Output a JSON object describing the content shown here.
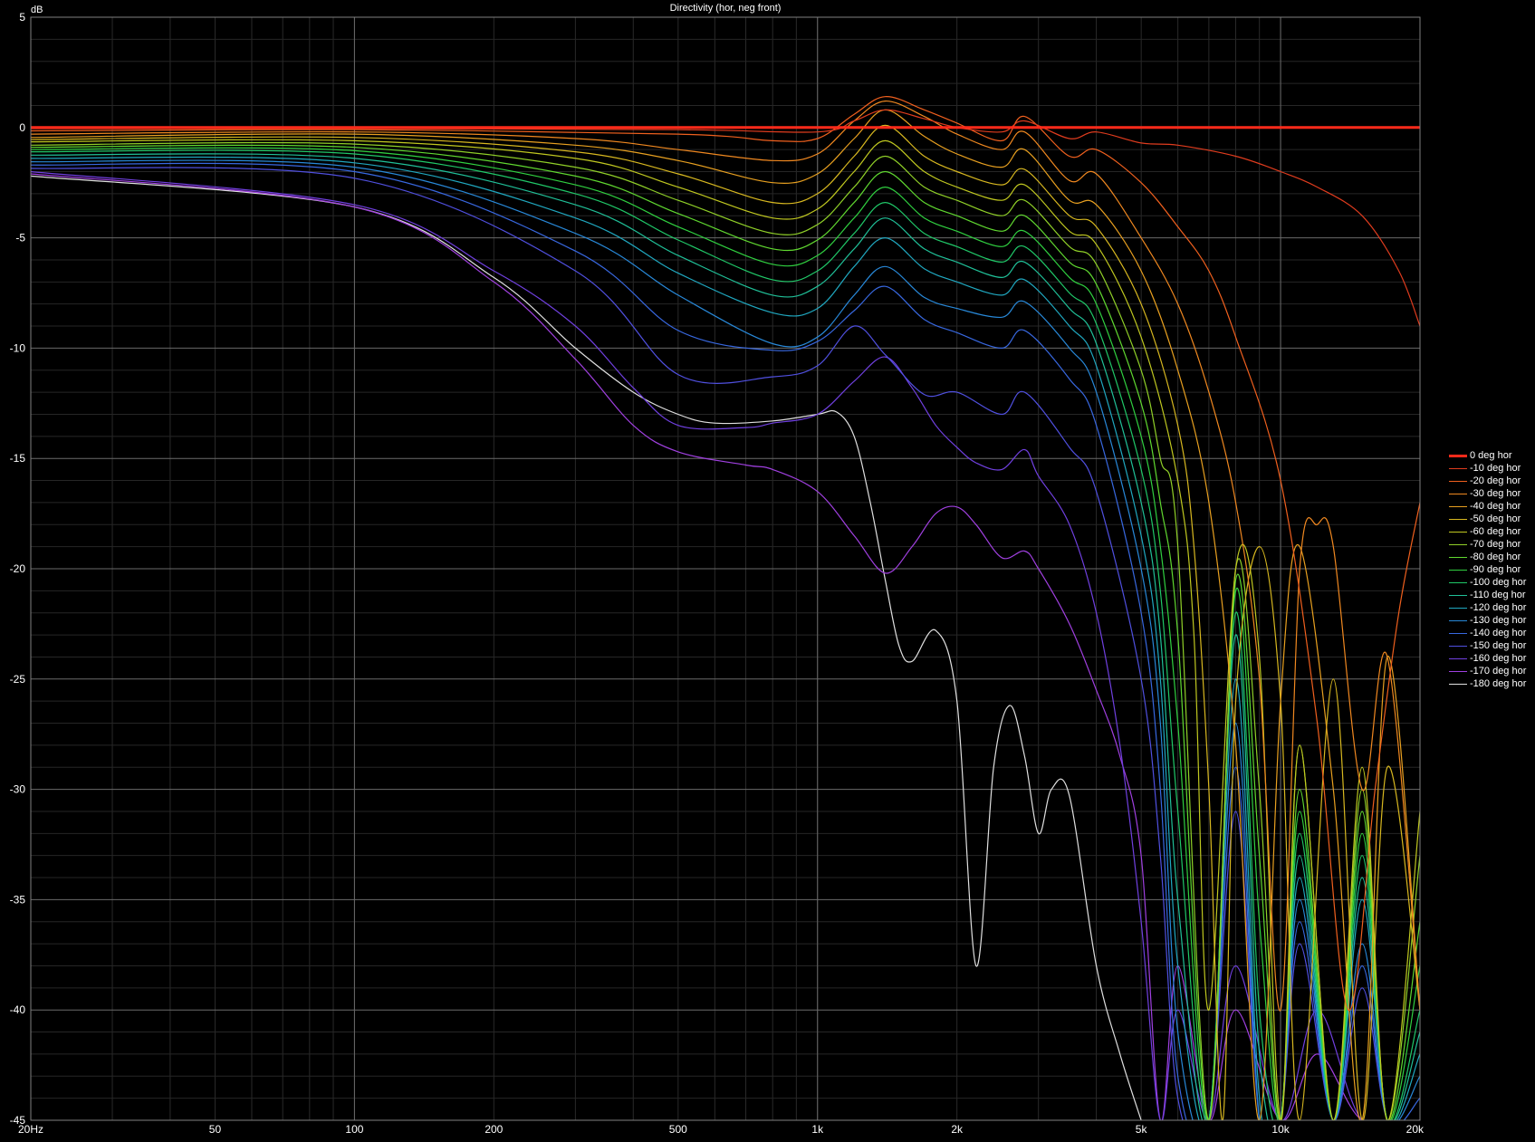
{
  "chart_data": {
    "type": "line",
    "title": "Directivity (hor, neg front)",
    "ylabel": "dB",
    "xlabel": "",
    "x_scale": "log",
    "xlim": [
      20,
      20000
    ],
    "ylim": [
      -45,
      5
    ],
    "grid": true,
    "legend_position": "right",
    "x_ticks": [
      {
        "value": 20,
        "label": "20Hz"
      },
      {
        "value": 50,
        "label": "50"
      },
      {
        "value": 100,
        "label": "100"
      },
      {
        "value": 200,
        "label": "200"
      },
      {
        "value": 500,
        "label": "500"
      },
      {
        "value": 1000,
        "label": "1k"
      },
      {
        "value": 2000,
        "label": "2k"
      },
      {
        "value": 5000,
        "label": "5k"
      },
      {
        "value": 10000,
        "label": "10k"
      },
      {
        "value": 20000,
        "label": "20k"
      }
    ],
    "y_ticks": [
      {
        "value": 5,
        "label": "5"
      },
      {
        "value": 0,
        "label": "0"
      },
      {
        "value": -5,
        "label": "-5"
      },
      {
        "value": -10,
        "label": "-10"
      },
      {
        "value": -15,
        "label": "-15"
      },
      {
        "value": -20,
        "label": "-20"
      },
      {
        "value": -25,
        "label": "-25"
      },
      {
        "value": -30,
        "label": "-30"
      },
      {
        "value": -35,
        "label": "-35"
      },
      {
        "value": -40,
        "label": "-40"
      },
      {
        "value": -45,
        "label": "-45"
      }
    ],
    "series": [
      {
        "name": "0 deg hor",
        "color": "#ff2a1a",
        "x": [
          20,
          100,
          1000,
          5000,
          10000,
          20000
        ],
        "y": [
          0,
          0,
          0,
          0,
          0,
          0
        ]
      },
      {
        "name": "-10 deg hor",
        "color": "#e03c1e",
        "x": [
          20,
          100,
          500,
          1000,
          1200,
          1400,
          1700,
          2000,
          2500,
          2800,
          3500,
          4000,
          5000,
          6000,
          8000,
          10000,
          12000,
          15000,
          18000,
          20000
        ],
        "y": [
          -0.05,
          -0.05,
          -0.1,
          -0.2,
          0.3,
          0.8,
          0.4,
          0,
          -0.2,
          0.3,
          -0.5,
          -0.2,
          -0.7,
          -0.8,
          -1.3,
          -2.0,
          -2.7,
          -4.0,
          -6.5,
          -9.0
        ]
      },
      {
        "name": "-20 deg hor",
        "color": "#f0601e",
        "x": [
          20,
          100,
          500,
          800,
          1000,
          1200,
          1400,
          1700,
          2000,
          2500,
          2800,
          3500,
          4000,
          5000,
          6000,
          7000,
          8000,
          10000,
          12000,
          14000,
          16000,
          18000,
          20000
        ],
        "y": [
          -0.15,
          -0.1,
          -0.3,
          -0.6,
          -0.5,
          0.6,
          1.4,
          0.8,
          0.2,
          -0.6,
          0.5,
          -1.3,
          -1.0,
          -2.5,
          -4.5,
          -6.5,
          -9.5,
          -16.0,
          -27.0,
          -40.0,
          -30.0,
          -22.0,
          -17.0
        ]
      },
      {
        "name": "-30 deg hor",
        "color": "#f08820",
        "x": [
          20,
          100,
          300,
          500,
          800,
          1000,
          1200,
          1400,
          1700,
          2000,
          2500,
          2800,
          3500,
          4000,
          5000,
          6000,
          7000,
          8000,
          9000,
          10000,
          11000,
          12000,
          13000,
          15000,
          17000,
          20000
        ],
        "y": [
          -0.3,
          -0.2,
          -0.5,
          -1.0,
          -1.5,
          -1.2,
          0.3,
          1.2,
          0.5,
          -0.3,
          -1.0,
          -0.2,
          -2.4,
          -2.1,
          -5.0,
          -8.0,
          -12.0,
          -17.0,
          -25.0,
          -40.0,
          -20.0,
          -18.0,
          -19.0,
          -30.0,
          -24.0,
          -40.0
        ]
      },
      {
        "name": "-40 deg hor",
        "color": "#e8a020",
        "x": [
          20,
          100,
          300,
          500,
          800,
          1000,
          1200,
          1400,
          1700,
          2000,
          2500,
          2800,
          3500,
          4000,
          5000,
          6000,
          7000,
          8000,
          9000,
          10000,
          11000,
          13000,
          15000,
          17000,
          20000
        ],
        "y": [
          -0.45,
          -0.3,
          -0.8,
          -1.5,
          -2.5,
          -2.1,
          -0.5,
          0.8,
          -0.4,
          -1.2,
          -1.8,
          -1.0,
          -3.3,
          -3.5,
          -6.5,
          -11.0,
          -17.0,
          -28.0,
          -45.0,
          -26.0,
          -19.0,
          -30.0,
          -45.0,
          -24.0,
          -40.0
        ]
      },
      {
        "name": "-50 deg hor",
        "color": "#d8b820",
        "x": [
          20,
          100,
          300,
          500,
          800,
          1000,
          1200,
          1400,
          1700,
          2000,
          2500,
          2800,
          3500,
          4000,
          5000,
          6000,
          6500,
          7000,
          7500,
          8000,
          9000,
          10000,
          11000,
          13000,
          15000,
          17000,
          20000
        ],
        "y": [
          -0.55,
          -0.45,
          -1.1,
          -2.1,
          -3.4,
          -3.0,
          -1.3,
          0.1,
          -1.3,
          -2.0,
          -2.6,
          -1.9,
          -4.0,
          -4.5,
          -8.0,
          -13.5,
          -19.0,
          -30.0,
          -45.0,
          -26.0,
          -19.0,
          -26.0,
          -45.0,
          -25.0,
          -45.0,
          -29.0,
          -40.0
        ]
      },
      {
        "name": "-60 deg hor",
        "color": "#c0c820",
        "x": [
          20,
          100,
          300,
          500,
          800,
          1000,
          1200,
          1400,
          1700,
          2000,
          2500,
          2800,
          3500,
          4000,
          5000,
          6000,
          6500,
          7000,
          8000,
          9000,
          10000,
          11000,
          13000,
          15000,
          17000,
          20000
        ],
        "y": [
          -0.65,
          -0.6,
          -1.4,
          -2.7,
          -4.1,
          -3.7,
          -2.0,
          -0.6,
          -2.0,
          -2.7,
          -3.3,
          -2.6,
          -4.7,
          -5.3,
          -9.5,
          -16.0,
          -23.0,
          -40.0,
          -20.0,
          -24.0,
          -45.0,
          -28.0,
          -45.0,
          -29.0,
          -45.0,
          -31.0
        ]
      },
      {
        "name": "-70 deg hor",
        "color": "#90d028",
        "x": [
          20,
          100,
          300,
          500,
          800,
          1000,
          1200,
          1400,
          1700,
          2000,
          2500,
          2800,
          3500,
          4000,
          5000,
          5500,
          6000,
          7000,
          8000,
          9000,
          10000,
          11000,
          13000,
          15000,
          17000,
          20000
        ],
        "y": [
          -0.8,
          -0.75,
          -1.8,
          -3.3,
          -4.8,
          -4.4,
          -2.7,
          -1.3,
          -2.7,
          -3.3,
          -4.0,
          -3.3,
          -5.4,
          -6.2,
          -11.0,
          -15.0,
          -19.0,
          -45.0,
          -20.0,
          -30.0,
          -45.0,
          -28.0,
          -45.0,
          -30.0,
          -45.0,
          -33.0
        ]
      },
      {
        "name": "-80 deg hor",
        "color": "#60d830",
        "x": [
          20,
          100,
          300,
          500,
          800,
          1000,
          1200,
          1400,
          1700,
          2000,
          2500,
          2800,
          3500,
          4000,
          5000,
          5500,
          6000,
          7000,
          8000,
          9000,
          10000,
          11000,
          13000,
          15000,
          17000,
          20000
        ],
        "y": [
          -0.9,
          -0.9,
          -2.2,
          -3.9,
          -5.5,
          -5.1,
          -3.4,
          -2.0,
          -3.4,
          -4.0,
          -4.7,
          -4.0,
          -6.1,
          -7.1,
          -12.5,
          -17.0,
          -23.0,
          -45.0,
          -20.5,
          -33.0,
          -45.0,
          -30.0,
          -45.0,
          -31.0,
          -45.0,
          -36.0
        ]
      },
      {
        "name": "-90 deg hor",
        "color": "#30d040",
        "x": [
          20,
          100,
          300,
          500,
          800,
          1000,
          1200,
          1400,
          1700,
          2000,
          2500,
          2800,
          3500,
          4000,
          5000,
          5500,
          6000,
          7000,
          8000,
          9000,
          10000,
          11000,
          13000,
          15000,
          17000,
          20000
        ],
        "y": [
          -1.0,
          -1.05,
          -2.6,
          -4.5,
          -6.2,
          -5.8,
          -4.1,
          -2.7,
          -4.1,
          -4.7,
          -5.4,
          -4.7,
          -6.8,
          -8.0,
          -14.0,
          -19.0,
          -27.0,
          -45.0,
          -21.0,
          -36.0,
          -45.0,
          -31.0,
          -45.0,
          -32.0,
          -45.0,
          -38.0
        ]
      },
      {
        "name": "-100 deg hor",
        "color": "#20c868",
        "x": [
          20,
          100,
          300,
          500,
          800,
          1000,
          1200,
          1400,
          1700,
          2000,
          2500,
          2800,
          3500,
          4000,
          5000,
          5500,
          6000,
          7000,
          8000,
          9000,
          10000,
          11000,
          13000,
          15000,
          17000,
          20000
        ],
        "y": [
          -1.1,
          -1.2,
          -3.0,
          -5.1,
          -6.9,
          -6.5,
          -4.8,
          -3.4,
          -4.8,
          -5.4,
          -6.1,
          -5.4,
          -7.5,
          -8.9,
          -15.5,
          -21.0,
          -31.0,
          -45.0,
          -22.0,
          -40.0,
          -45.0,
          -32.0,
          -45.0,
          -33.0,
          -45.0,
          -40.0
        ]
      },
      {
        "name": "-110 deg hor",
        "color": "#20c098",
        "x": [
          20,
          100,
          300,
          500,
          800,
          1000,
          1200,
          1400,
          1700,
          2000,
          2500,
          2800,
          3500,
          4000,
          5000,
          5500,
          6000,
          7000,
          8000,
          9000,
          10000,
          11000,
          13000,
          15000,
          17000,
          20000
        ],
        "y": [
          -1.25,
          -1.4,
          -3.5,
          -5.8,
          -7.6,
          -7.2,
          -5.5,
          -4.1,
          -5.5,
          -6.1,
          -6.8,
          -6.1,
          -8.2,
          -9.8,
          -17.0,
          -23.0,
          -35.0,
          -45.0,
          -23.0,
          -42.0,
          -45.0,
          -33.0,
          -45.0,
          -34.0,
          -45.0,
          -41.0
        ]
      },
      {
        "name": "-120 deg hor",
        "color": "#20a8c0",
        "x": [
          20,
          100,
          300,
          500,
          800,
          1000,
          1200,
          1400,
          1700,
          2000,
          2500,
          2800,
          3500,
          4000,
          5000,
          5500,
          6000,
          7000,
          8000,
          9000,
          10000,
          11000,
          13000,
          15000,
          17000,
          20000
        ],
        "y": [
          -1.4,
          -1.6,
          -4.1,
          -6.6,
          -8.4,
          -8.2,
          -6.3,
          -5.0,
          -6.4,
          -7.0,
          -7.6,
          -6.9,
          -9.0,
          -10.8,
          -18.5,
          -25.0,
          -38.0,
          -45.0,
          -25.0,
          -44.0,
          -45.0,
          -34.0,
          -45.0,
          -35.0,
          -45.0,
          -42.0
        ]
      },
      {
        "name": "-130 deg hor",
        "color": "#2888d8",
        "x": [
          20,
          100,
          300,
          500,
          800,
          1000,
          1200,
          1400,
          1700,
          2000,
          2500,
          2800,
          3500,
          4000,
          5000,
          5500,
          6000,
          7000,
          8000,
          9000,
          10000,
          11000,
          13000,
          15000,
          17000,
          20000
        ],
        "y": [
          -1.55,
          -1.8,
          -4.8,
          -7.6,
          -9.8,
          -9.5,
          -7.6,
          -6.3,
          -7.7,
          -8.2,
          -8.6,
          -7.9,
          -10.0,
          -12.0,
          -20.0,
          -27.0,
          -41.0,
          -45.0,
          -27.0,
          -45.0,
          -45.0,
          -35.0,
          -45.0,
          -37.0,
          -45.0,
          -43.0
        ]
      },
      {
        "name": "-140 deg hor",
        "color": "#3868e0",
        "x": [
          20,
          100,
          300,
          500,
          800,
          1000,
          1200,
          1400,
          1700,
          2000,
          2500,
          2800,
          3500,
          4000,
          5000,
          5500,
          6000,
          7000,
          8000,
          9000,
          10000,
          11000,
          13000,
          15000,
          17000,
          20000
        ],
        "y": [
          -1.7,
          -2.0,
          -5.6,
          -9.2,
          -10.1,
          -9.7,
          -8.3,
          -7.2,
          -8.7,
          -9.3,
          -10.0,
          -9.2,
          -11.4,
          -13.5,
          -22.0,
          -30.0,
          -43.0,
          -45.0,
          -29.0,
          -45.0,
          -45.0,
          -36.0,
          -45.0,
          -38.0,
          -45.0,
          -44.0
        ]
      },
      {
        "name": "-150 deg hor",
        "color": "#5050e0",
        "x": [
          20,
          100,
          300,
          500,
          800,
          1000,
          1200,
          1400,
          1700,
          2000,
          2500,
          2800,
          3500,
          4000,
          5000,
          5500,
          6000,
          7000,
          8000,
          9000,
          10000,
          11000,
          13000,
          15000,
          17000,
          20000
        ],
        "y": [
          -1.85,
          -2.3,
          -6.5,
          -11.2,
          -11.3,
          -10.8,
          -9.0,
          -10.3,
          -12.1,
          -12.0,
          -13.0,
          -12.0,
          -14.5,
          -16.5,
          -25.0,
          -33.0,
          -44.0,
          -45.0,
          -31.0,
          -45.0,
          -45.0,
          -37.0,
          -45.0,
          -39.0,
          -45.0,
          -45.0
        ]
      },
      {
        "name": "-160 deg hor",
        "color": "#7040e0",
        "x": [
          20,
          100,
          200,
          300,
          400,
          500,
          700,
          800,
          1000,
          1200,
          1400,
          1600,
          1800,
          2000,
          2200,
          2500,
          2800,
          3000,
          3500,
          4000,
          4500,
          5000,
          5500,
          6000,
          7000,
          8000,
          10000,
          12000,
          15000,
          20000
        ],
        "y": [
          -2.0,
          -3.5,
          -6.5,
          -9.0,
          -11.8,
          -13.5,
          -13.6,
          -13.4,
          -13.0,
          -11.5,
          -10.4,
          -11.8,
          -13.5,
          -14.5,
          -15.2,
          -15.5,
          -14.6,
          -15.8,
          -18.0,
          -22.0,
          -28.0,
          -36.0,
          -45.0,
          -40.0,
          -45.0,
          -38.0,
          -45.0,
          -40.0,
          -45.0,
          -45.0
        ]
      },
      {
        "name": "-170 deg hor",
        "color": "#a040e0",
        "x": [
          20,
          100,
          200,
          300,
          400,
          500,
          700,
          800,
          1000,
          1200,
          1400,
          1600,
          1800,
          2000,
          2200,
          2500,
          2800,
          3000,
          3500,
          4000,
          4500,
          5000,
          5500,
          6000,
          7000,
          8000,
          10000,
          12000,
          15000,
          20000
        ],
        "y": [
          -2.1,
          -3.6,
          -7.0,
          -10.5,
          -13.5,
          -14.7,
          -15.3,
          -15.5,
          -16.5,
          -18.5,
          -20.2,
          -19.0,
          -17.5,
          -17.2,
          -18.0,
          -19.5,
          -19.2,
          -20.0,
          -22.5,
          -25.5,
          -28.5,
          -33.0,
          -45.0,
          -38.0,
          -45.0,
          -40.0,
          -45.0,
          -42.0,
          -45.0,
          -45.0
        ]
      },
      {
        "name": "-180 deg hor",
        "color": "#e0e0e0",
        "x": [
          20,
          100,
          200,
          300,
          400,
          500,
          600,
          800,
          1000,
          1100,
          1200,
          1300,
          1400,
          1500,
          1600,
          1800,
          2000,
          2200,
          2400,
          2600,
          2800,
          3000,
          3200,
          3500,
          4000,
          4500,
          5000
        ],
        "y": [
          -2.2,
          -3.6,
          -6.8,
          -10.0,
          -12.0,
          -13.0,
          -13.4,
          -13.3,
          -13.0,
          -12.9,
          -14.0,
          -17.0,
          -20.5,
          -23.5,
          -24.2,
          -22.8,
          -26.0,
          -38.0,
          -29.0,
          -26.2,
          -28.5,
          -32.0,
          -30.0,
          -30.3,
          -38.0,
          -42.0,
          -45.0
        ]
      }
    ]
  }
}
